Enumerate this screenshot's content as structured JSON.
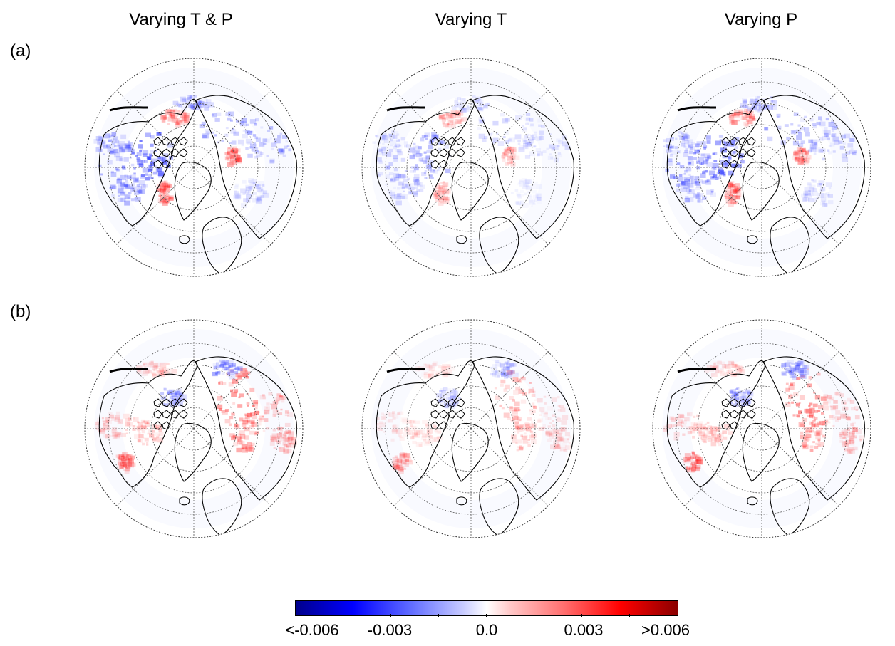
{
  "columns": [
    {
      "title": "Varying T & P"
    },
    {
      "title": "Varying T"
    },
    {
      "title": "Varying P"
    }
  ],
  "rows": [
    {
      "label": "(a)"
    },
    {
      "label": "(b)"
    }
  ],
  "colorbar": {
    "labels": [
      "<-0.006",
      "-0.003",
      "0.0",
      "0.003",
      ">0.006"
    ],
    "values": [
      -0.006,
      -0.003,
      0.0,
      0.003,
      0.006
    ],
    "colors": [
      "#00008b",
      "#0000ff",
      "#ffffff",
      "#ff0000",
      "#8b0000"
    ]
  },
  "chart_data": {
    "type": "heatmap",
    "projection": "north-polar-stereographic",
    "panels": [
      {
        "row": "(a)",
        "column": "Varying T & P",
        "dominant_sign": "negative"
      },
      {
        "row": "(a)",
        "column": "Varying T",
        "dominant_sign": "negative"
      },
      {
        "row": "(a)",
        "column": "Varying P",
        "dominant_sign": "negative"
      },
      {
        "row": "(b)",
        "column": "Varying T & P",
        "dominant_sign": "positive"
      },
      {
        "row": "(b)",
        "column": "Varying T",
        "dominant_sign": "positive"
      },
      {
        "row": "(b)",
        "column": "Varying P",
        "dominant_sign": "positive"
      }
    ],
    "color_range": [
      -0.006,
      0.006
    ],
    "grid": true
  }
}
